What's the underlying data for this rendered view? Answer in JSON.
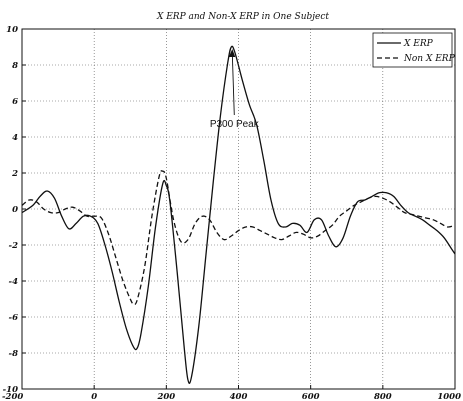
{
  "chart_data": {
    "type": "line",
    "title": "X ERP and Non-X ERP in One Subject",
    "xlabel": "",
    "ylabel": "",
    "xlim": [
      -200,
      1000
    ],
    "ylim": [
      -10,
      10
    ],
    "x_ticks": [
      -200,
      0,
      200,
      400,
      600,
      800,
      1000
    ],
    "y_ticks": [
      10,
      8,
      6,
      4,
      2,
      0,
      -2,
      -4,
      -6,
      -8,
      -10
    ],
    "grid": true,
    "legend_position": "top-right",
    "series": [
      {
        "name": "X ERP",
        "style": "solid",
        "color": "#111111",
        "x": [
          -200,
          -170,
          -150,
          -130,
          -110,
          -90,
          -70,
          -50,
          -30,
          -10,
          10,
          30,
          50,
          70,
          90,
          110,
          120,
          130,
          150,
          170,
          190,
          200,
          210,
          230,
          250,
          260,
          270,
          290,
          310,
          330,
          350,
          370,
          380,
          390,
          410,
          430,
          450,
          470,
          490,
          510,
          530,
          550,
          570,
          590,
          610,
          630,
          650,
          670,
          690,
          710,
          730,
          750,
          770,
          790,
          810,
          830,
          850,
          870,
          890,
          910,
          930,
          950,
          970,
          990,
          1000
        ],
        "y": [
          -0.2,
          0.2,
          0.7,
          1.0,
          0.6,
          -0.4,
          -1.1,
          -0.8,
          -0.4,
          -0.4,
          -0.8,
          -2.0,
          -3.5,
          -5.2,
          -6.7,
          -7.7,
          -7.7,
          -6.9,
          -4.3,
          -1.0,
          1.4,
          1.3,
          0.4,
          -3.5,
          -7.8,
          -9.5,
          -9.3,
          -6.5,
          -2.5,
          1.5,
          5.2,
          8.1,
          9.0,
          8.7,
          7.2,
          5.8,
          4.7,
          2.7,
          0.5,
          -0.8,
          -1.0,
          -0.8,
          -0.9,
          -1.3,
          -0.6,
          -0.6,
          -1.5,
          -2.1,
          -1.6,
          -0.4,
          0.4,
          0.5,
          0.7,
          0.9,
          0.9,
          0.7,
          0.2,
          -0.2,
          -0.4,
          -0.6,
          -0.9,
          -1.2,
          -1.6,
          -2.2,
          -2.5
        ]
      },
      {
        "name": "Non X ERP",
        "style": "dashed",
        "color": "#111111",
        "x": [
          -200,
          -180,
          -160,
          -140,
          -120,
          -100,
          -80,
          -60,
          -40,
          -20,
          0,
          20,
          40,
          60,
          80,
          100,
          110,
          120,
          140,
          160,
          180,
          190,
          200,
          220,
          240,
          260,
          280,
          300,
          320,
          340,
          360,
          380,
          400,
          420,
          440,
          460,
          480,
          500,
          520,
          540,
          560,
          580,
          600,
          620,
          640,
          660,
          680,
          700,
          720,
          740,
          760,
          780,
          800,
          820,
          840,
          860,
          880,
          900,
          920,
          940,
          960,
          980,
          1000
        ],
        "y": [
          0.2,
          0.5,
          0.4,
          0.0,
          -0.2,
          -0.2,
          0.0,
          0.1,
          -0.1,
          -0.4,
          -0.4,
          -0.5,
          -1.4,
          -2.7,
          -4.0,
          -5.0,
          -5.3,
          -5.0,
          -3.2,
          -0.4,
          1.8,
          2.1,
          1.7,
          -0.6,
          -1.8,
          -1.7,
          -0.8,
          -0.4,
          -0.6,
          -1.3,
          -1.7,
          -1.5,
          -1.2,
          -1.0,
          -1.0,
          -1.2,
          -1.4,
          -1.6,
          -1.7,
          -1.5,
          -1.3,
          -1.4,
          -1.6,
          -1.5,
          -1.2,
          -0.9,
          -0.4,
          -0.1,
          0.2,
          0.4,
          0.6,
          0.7,
          0.6,
          0.4,
          0.1,
          -0.2,
          -0.3,
          -0.4,
          -0.5,
          -0.6,
          -0.8,
          -1.0,
          -0.9
        ]
      }
    ],
    "annotations": [
      {
        "text": "P300 Peak",
        "x": 380,
        "y": 9.0,
        "arrow": true
      }
    ]
  }
}
